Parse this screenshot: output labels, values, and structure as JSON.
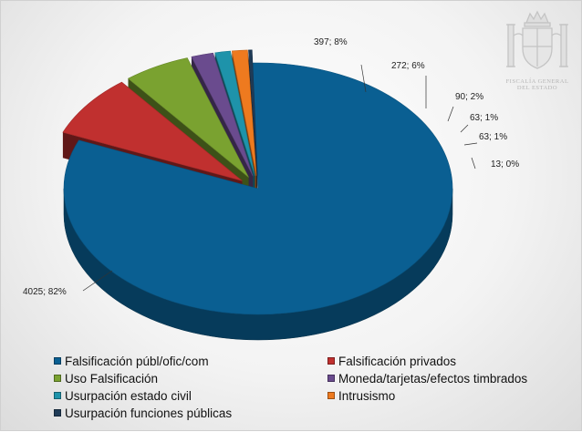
{
  "chart_data": {
    "type": "pie",
    "style": "3d-exploded",
    "categories": [
      "Falsificación públ/ofic/com",
      "Falsificación privados",
      "Uso Falsificación",
      "Moneda/tarjetas/efectos timbrados",
      "Usurpación estado civil",
      "Intrusismo",
      "Usurpación funciones públicas"
    ],
    "values": [
      4025,
      397,
      272,
      90,
      63,
      63,
      13
    ],
    "percent_labels": [
      "82%",
      "8%",
      "6%",
      "2%",
      "1%",
      "1%",
      "0%"
    ],
    "data_labels": [
      "4025; 82%",
      "397; 8%",
      "272; 6%",
      "90; 2%",
      "63; 1%",
      "63; 1%",
      "13; 0%"
    ],
    "colors": [
      "#0a5f92",
      "#c0302f",
      "#7aa230",
      "#6a4b8e",
      "#1e93aa",
      "#ee7a1f",
      "#1f3b57"
    ],
    "legend_position": "bottom",
    "title": ""
  },
  "emblem": {
    "icon": "coat-of-arms-icon",
    "line1": "FISCALÍA GENERAL",
    "line2": "DEL ESTADO"
  }
}
